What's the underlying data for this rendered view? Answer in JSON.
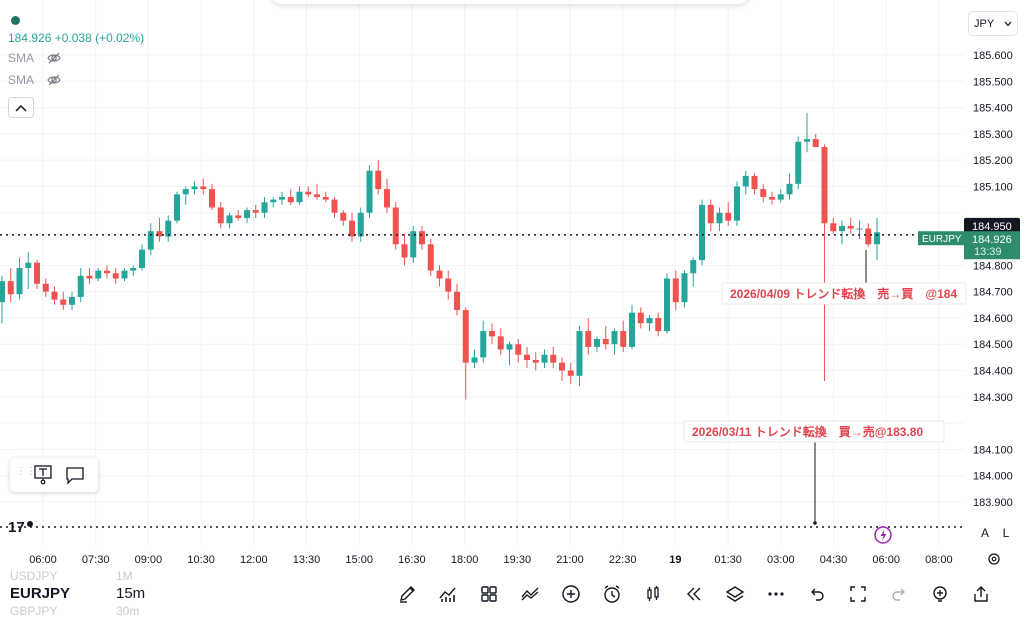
{
  "legend": {
    "price_line": "184.926  +0.038 (+0.02%)",
    "indicators": [
      {
        "label": "SMA",
        "icon": "eye-off-icon"
      },
      {
        "label": "SMA",
        "icon": "eye-off-icon"
      }
    ],
    "collapse_icon": "chevron-up-icon"
  },
  "currency_selector": "JPY",
  "price_scale": {
    "ticks": [
      "185.600",
      "185.500",
      "185.400",
      "185.300",
      "185.200",
      "185.100",
      "184.800",
      "184.700",
      "184.600",
      "184.500",
      "184.400",
      "184.300",
      "184.100",
      "184.000",
      "183.900"
    ],
    "ref_line_value": 184.95,
    "ref_label": "184.950",
    "current_value": 184.926,
    "current_price_label": "184.926",
    "countdown": "13:39",
    "symbol_tag": "EURJPY"
  },
  "time_axis": {
    "labels": [
      "06:00",
      "07:30",
      "09:00",
      "10:30",
      "12:00",
      "13:30",
      "15:00",
      "16:30",
      "18:00",
      "19:30",
      "21:00",
      "22:30",
      "19",
      "01:30",
      "03:00",
      "04:30",
      "06:00",
      "08:00"
    ]
  },
  "annotations": [
    {
      "text": "2026/04/09 トレンド転換　売→買　@184",
      "color": "#e0454f"
    },
    {
      "text": "2026/03/11 トレンド転換　買→売@183.80",
      "color": "#e0454f"
    }
  ],
  "scale_buttons": {
    "auto": "A",
    "log": "L"
  },
  "watchlist": [
    {
      "symbol": "USDJPY",
      "interval": "1M"
    },
    {
      "symbol": "EURJPY",
      "interval": "15m"
    },
    {
      "symbol": "GBPJPY",
      "interval": "30m"
    }
  ],
  "toolbar_icons": [
    "pen-icon",
    "indicators-icon",
    "templates-icon",
    "compare-icon",
    "add-icon",
    "alert-clock-icon",
    "candle-style-icon",
    "replay-icon",
    "layers-icon",
    "more-icon",
    "undo-icon",
    "fullscreen-icon",
    "redo-icon",
    "add-alert-icon",
    "share-icon"
  ],
  "colors": {
    "up": "#26a69a",
    "down": "#ef5350",
    "tag": "#2e8b6e",
    "grid": "#f0f3fa"
  },
  "chart_data": {
    "type": "candlestick",
    "symbol": "EURJPY",
    "interval": "15m",
    "ylim": [
      183.82,
      185.66
    ],
    "candles": [
      [
        184.66,
        184.76,
        184.58,
        184.74
      ],
      [
        184.74,
        184.79,
        184.66,
        184.69
      ],
      [
        184.69,
        184.83,
        184.67,
        184.79
      ],
      [
        184.79,
        184.85,
        184.71,
        184.81
      ],
      [
        184.81,
        184.82,
        184.71,
        184.73
      ],
      [
        184.73,
        184.75,
        184.68,
        184.7
      ],
      [
        184.7,
        184.72,
        184.65,
        184.67
      ],
      [
        184.67,
        184.7,
        184.63,
        184.65
      ],
      [
        184.65,
        184.7,
        184.63,
        184.68
      ],
      [
        184.68,
        184.79,
        184.66,
        184.76
      ],
      [
        184.76,
        184.79,
        184.73,
        184.75
      ],
      [
        184.75,
        184.79,
        184.74,
        184.78
      ],
      [
        184.78,
        184.8,
        184.75,
        184.77
      ],
      [
        184.77,
        184.79,
        184.73,
        184.75
      ],
      [
        184.75,
        184.79,
        184.74,
        184.78
      ],
      [
        184.78,
        184.8,
        184.76,
        184.79
      ],
      [
        184.79,
        184.88,
        184.78,
        184.86
      ],
      [
        184.86,
        184.96,
        184.84,
        184.93
      ],
      [
        184.93,
        184.98,
        184.89,
        184.91
      ],
      [
        184.91,
        184.99,
        184.89,
        184.97
      ],
      [
        184.97,
        185.08,
        184.96,
        185.07
      ],
      [
        185.07,
        185.1,
        185.03,
        185.09
      ],
      [
        185.09,
        185.12,
        185.07,
        185.1
      ],
      [
        185.1,
        185.13,
        185.07,
        185.09
      ],
      [
        185.09,
        185.11,
        185.01,
        185.02
      ],
      [
        185.02,
        185.04,
        184.94,
        184.96
      ],
      [
        184.96,
        185.0,
        184.94,
        184.99
      ],
      [
        184.99,
        185.01,
        184.97,
        184.98
      ],
      [
        184.98,
        185.02,
        184.96,
        185.01
      ],
      [
        185.01,
        185.03,
        184.98,
        185.0
      ],
      [
        185.0,
        185.06,
        184.98,
        185.04
      ],
      [
        185.04,
        185.06,
        185.02,
        185.05
      ],
      [
        185.05,
        185.08,
        185.03,
        185.06
      ],
      [
        185.06,
        185.09,
        185.03,
        185.04
      ],
      [
        185.04,
        185.1,
        185.03,
        185.08
      ],
      [
        185.08,
        185.1,
        185.06,
        185.07
      ],
      [
        185.07,
        185.11,
        185.05,
        185.06
      ],
      [
        185.06,
        185.08,
        185.04,
        185.05
      ],
      [
        185.05,
        185.06,
        184.98,
        185.0
      ],
      [
        185.0,
        185.01,
        184.95,
        184.97
      ],
      [
        184.97,
        185.0,
        184.89,
        184.91
      ],
      [
        184.91,
        185.02,
        184.89,
        185.0
      ],
      [
        185.0,
        185.18,
        184.98,
        185.16
      ],
      [
        185.16,
        185.2,
        185.07,
        185.09
      ],
      [
        185.09,
        185.13,
        185.0,
        185.02
      ],
      [
        185.02,
        185.04,
        184.86,
        184.88
      ],
      [
        184.88,
        184.92,
        184.8,
        184.83
      ],
      [
        184.83,
        184.95,
        184.81,
        184.93
      ],
      [
        184.93,
        184.95,
        184.86,
        184.88
      ],
      [
        184.88,
        184.9,
        184.76,
        184.78
      ],
      [
        184.78,
        184.8,
        184.72,
        184.75
      ],
      [
        184.75,
        184.78,
        184.67,
        184.7
      ],
      [
        184.7,
        184.73,
        184.61,
        184.63
      ],
      [
        184.63,
        184.64,
        184.29,
        184.43
      ],
      [
        184.43,
        184.48,
        184.41,
        184.45
      ],
      [
        184.45,
        184.59,
        184.43,
        184.55
      ],
      [
        184.55,
        184.58,
        184.5,
        184.53
      ],
      [
        184.53,
        184.56,
        184.46,
        184.48
      ],
      [
        184.48,
        184.51,
        184.42,
        184.5
      ],
      [
        184.5,
        184.52,
        184.43,
        184.46
      ],
      [
        184.46,
        184.49,
        184.41,
        184.44
      ],
      [
        184.44,
        184.47,
        184.4,
        184.43
      ],
      [
        184.43,
        184.48,
        184.41,
        184.46
      ],
      [
        184.46,
        184.49,
        184.41,
        184.43
      ],
      [
        184.43,
        184.45,
        184.36,
        184.4
      ],
      [
        184.4,
        184.43,
        184.35,
        184.38
      ],
      [
        184.38,
        184.57,
        184.34,
        184.55
      ],
      [
        184.55,
        184.6,
        184.46,
        184.49
      ],
      [
        184.49,
        184.53,
        184.47,
        184.52
      ],
      [
        184.52,
        184.57,
        184.48,
        184.5
      ],
      [
        184.5,
        184.56,
        184.46,
        184.55
      ],
      [
        184.55,
        184.59,
        184.47,
        184.49
      ],
      [
        184.49,
        184.65,
        184.48,
        184.62
      ],
      [
        184.62,
        184.64,
        184.56,
        184.58
      ],
      [
        184.58,
        184.61,
        184.55,
        184.6
      ],
      [
        184.6,
        184.62,
        184.53,
        184.55
      ],
      [
        184.55,
        184.77,
        184.54,
        184.75
      ],
      [
        184.75,
        184.78,
        184.63,
        184.66
      ],
      [
        184.66,
        184.78,
        184.64,
        184.77
      ],
      [
        184.77,
        184.83,
        184.72,
        184.82
      ],
      [
        184.82,
        185.05,
        184.8,
        185.03
      ],
      [
        185.03,
        185.05,
        184.93,
        184.96
      ],
      [
        184.96,
        185.02,
        184.93,
        185.0
      ],
      [
        185.0,
        185.04,
        184.95,
        184.97
      ],
      [
        184.97,
        185.12,
        184.95,
        185.1
      ],
      [
        185.1,
        185.16,
        185.07,
        185.14
      ],
      [
        185.14,
        185.15,
        185.07,
        185.09
      ],
      [
        185.09,
        185.11,
        185.04,
        185.06
      ],
      [
        185.06,
        185.08,
        185.03,
        185.05
      ],
      [
        185.05,
        185.09,
        185.04,
        185.07
      ],
      [
        185.07,
        185.15,
        185.05,
        185.11
      ],
      [
        185.11,
        185.29,
        185.09,
        185.27
      ],
      [
        185.27,
        185.38,
        185.23,
        185.28
      ],
      [
        185.28,
        185.3,
        185.25,
        185.25
      ],
      [
        185.25,
        185.26,
        184.36,
        184.96
      ],
      [
        184.96,
        184.98,
        184.92,
        184.93
      ],
      [
        184.93,
        184.97,
        184.88,
        184.95
      ],
      [
        184.95,
        184.98,
        184.92,
        184.94
      ],
      [
        184.94,
        184.97,
        184.9,
        184.94
      ],
      [
        184.94,
        184.96,
        184.87,
        184.88
      ],
      [
        184.88,
        184.98,
        184.82,
        184.926
      ]
    ]
  }
}
